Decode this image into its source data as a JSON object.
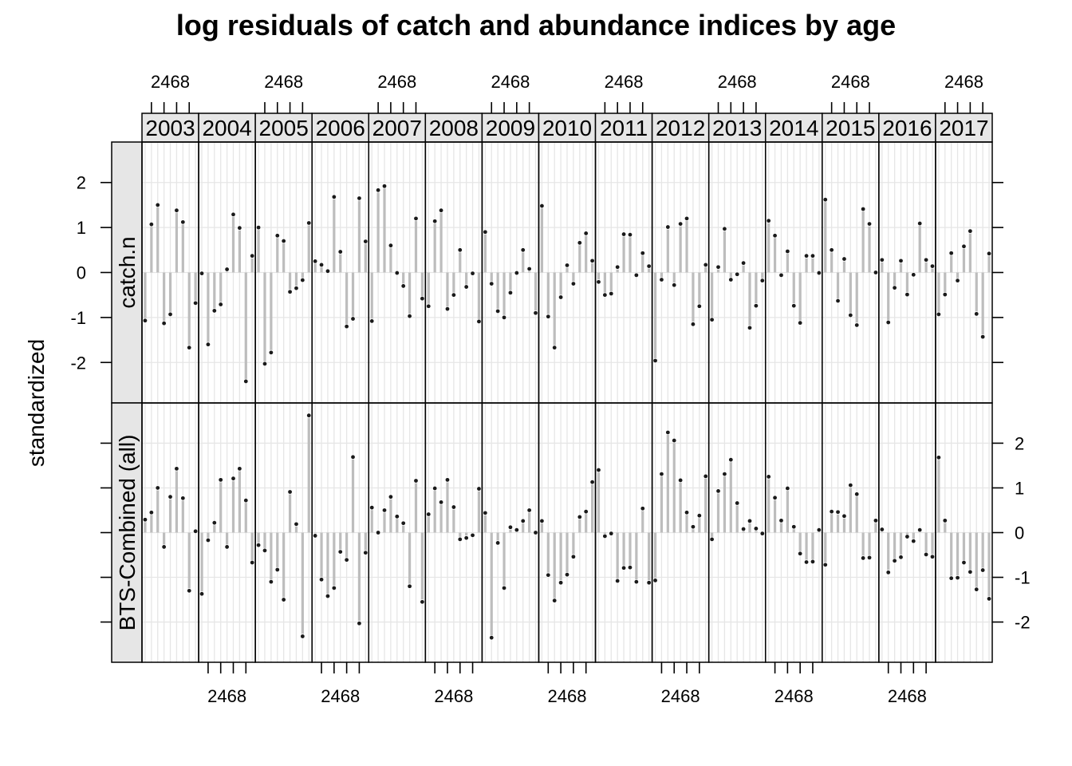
{
  "chart_data": {
    "type": "lollipop",
    "title": "log residuals of catch and abundance indices by age",
    "ylabel": "standardized",
    "xlabel": "",
    "ylim": [
      -2.9,
      2.9
    ],
    "xlim": [
      0.5,
      9.5
    ],
    "grid": true,
    "ages": [
      1,
      2,
      3,
      4,
      5,
      6,
      7,
      8,
      9
    ],
    "x_tick_values": [
      2,
      4,
      6,
      8
    ],
    "x_tick_text": "2468",
    "y_ticks": [
      -2,
      -1,
      0,
      1,
      2
    ],
    "y_tick_labels": [
      "-2",
      "-1",
      "0",
      "1",
      "2"
    ],
    "years": [
      "2003",
      "2004",
      "2005",
      "2006",
      "2007",
      "2008",
      "2009",
      "2010",
      "2011",
      "2012",
      "2013",
      "2014",
      "2015",
      "2016",
      "2017"
    ],
    "rows": [
      {
        "name": "catch.n",
        "values": [
          [
            -1.07,
            1.07,
            1.5,
            -1.13,
            -0.93,
            1.38,
            1.12,
            -1.67,
            -0.68
          ],
          [
            -0.02,
            -1.6,
            -0.85,
            -0.71,
            0.07,
            1.29,
            0.99,
            -2.42,
            0.37
          ],
          [
            1.0,
            -2.03,
            -1.78,
            0.82,
            0.7,
            -0.43,
            -0.35,
            -0.17,
            1.1
          ],
          [
            0.25,
            0.17,
            0.03,
            1.68,
            0.46,
            -1.2,
            -1.03,
            1.65,
            0.69
          ],
          [
            -1.08,
            1.83,
            1.92,
            0.6,
            -0.01,
            -0.3,
            -0.97,
            1.2,
            -0.58
          ],
          [
            -0.75,
            1.14,
            1.38,
            -0.81,
            -0.5,
            0.5,
            -0.32,
            -0.02,
            -1.09
          ],
          [
            0.9,
            -0.25,
            -0.86,
            -1.0,
            -0.45,
            -0.01,
            0.5,
            0.08,
            -0.9
          ],
          [
            1.48,
            -0.98,
            -1.67,
            -0.55,
            0.16,
            -0.25,
            0.66,
            0.87,
            0.26
          ],
          [
            -0.21,
            -0.5,
            -0.47,
            0.12,
            0.85,
            0.84,
            -0.06,
            0.43,
            0.14
          ],
          [
            -1.96,
            -0.16,
            1.01,
            -0.28,
            1.08,
            1.2,
            -1.15,
            -0.75,
            0.17
          ],
          [
            -1.05,
            0.12,
            0.97,
            -0.16,
            -0.04,
            0.21,
            -1.23,
            -0.74,
            -0.18
          ],
          [
            1.15,
            0.82,
            -0.06,
            0.47,
            -0.74,
            -1.12,
            0.37,
            0.37,
            -0.01
          ],
          [
            1.62,
            0.5,
            -0.63,
            0.3,
            -0.95,
            -1.17,
            1.41,
            1.08,
            0.0
          ],
          [
            0.28,
            -1.11,
            -0.34,
            0.26,
            -0.49,
            -0.05,
            1.09,
            0.28,
            0.14
          ],
          [
            -0.93,
            -0.49,
            0.43,
            -0.18,
            0.58,
            0.92,
            -0.92,
            -1.43,
            0.42
          ]
        ]
      },
      {
        "name": "BTS-Combined (all)",
        "values": [
          [
            0.29,
            0.45,
            1.0,
            -0.32,
            0.8,
            1.43,
            0.77,
            -1.3,
            0.03
          ],
          [
            -1.37,
            -0.17,
            0.22,
            1.18,
            -0.32,
            1.21,
            1.43,
            0.72,
            -0.67
          ],
          [
            -0.28,
            -0.4,
            -1.1,
            -0.83,
            -1.5,
            0.91,
            0.19,
            -2.32,
            2.62
          ],
          [
            -0.07,
            -1.05,
            -1.42,
            -1.24,
            -0.43,
            -0.61,
            1.69,
            -2.03,
            -0.45
          ],
          [
            0.56,
            0.0,
            0.5,
            0.8,
            0.36,
            0.21,
            -1.2,
            1.16,
            -1.55
          ],
          [
            0.41,
            0.99,
            0.68,
            1.18,
            0.57,
            -0.15,
            -0.12,
            -0.06,
            0.98
          ],
          [
            0.44,
            -2.35,
            -0.23,
            -1.24,
            0.12,
            0.06,
            0.26,
            0.5,
            0.0
          ],
          [
            0.26,
            -0.95,
            -1.52,
            -1.12,
            -0.94,
            -0.54,
            0.35,
            0.47,
            1.13
          ],
          [
            1.4,
            -0.08,
            -0.02,
            -1.08,
            -0.79,
            -0.78,
            -1.1,
            0.54,
            -1.12
          ],
          [
            -1.07,
            1.31,
            2.24,
            2.06,
            1.17,
            0.45,
            0.13,
            0.38,
            1.26
          ],
          [
            -0.15,
            0.93,
            1.31,
            1.63,
            0.66,
            0.08,
            0.26,
            0.09,
            -0.02
          ],
          [
            1.25,
            0.78,
            0.27,
            0.99,
            0.13,
            -0.47,
            -0.66,
            -0.65,
            0.06
          ],
          [
            -0.72,
            0.47,
            0.46,
            0.37,
            1.06,
            0.86,
            -0.57,
            -0.56,
            0.27
          ],
          [
            0.07,
            -0.89,
            -0.63,
            -0.55,
            -0.09,
            -0.19,
            0.06,
            -0.49,
            -0.54
          ],
          [
            1.68,
            0.27,
            -1.02,
            -1.01,
            -0.67,
            -0.88,
            -1.27,
            -0.84,
            -1.48
          ]
        ]
      }
    ]
  }
}
